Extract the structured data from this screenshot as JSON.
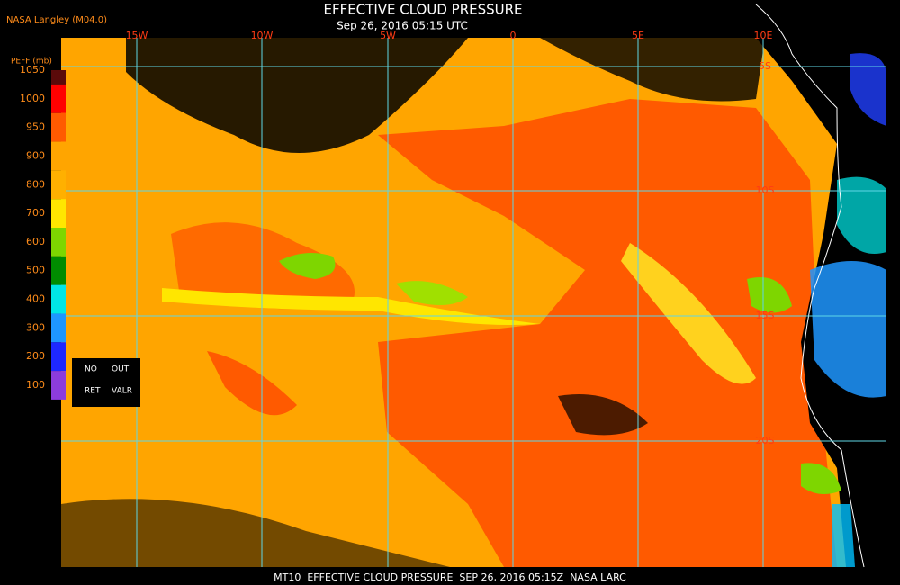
{
  "header": {
    "title": "EFFECTIVE CLOUD PRESSURE",
    "subtitle": "Sep 26, 2016 05:15 UTC",
    "source": "NASA Langley (M04.0)"
  },
  "legend": {
    "title": "PEFF (mb)",
    "ticks": [
      1050,
      1000,
      950,
      900,
      800,
      700,
      600,
      500,
      400,
      300,
      200,
      100
    ],
    "no_ret": [
      "NO",
      "RET"
    ],
    "out_valr": [
      "OUT",
      "VALR"
    ]
  },
  "map": {
    "lon_labels": [
      "15W",
      "10W",
      "5W",
      "0",
      "5E",
      "10E"
    ],
    "lat_labels": [
      "5S",
      "10S",
      "15S",
      "20S"
    ]
  },
  "footer": "MT10  EFFECTIVE CLOUD PRESSURE  SEP 26, 2016 05:15Z  NASA LARC"
}
